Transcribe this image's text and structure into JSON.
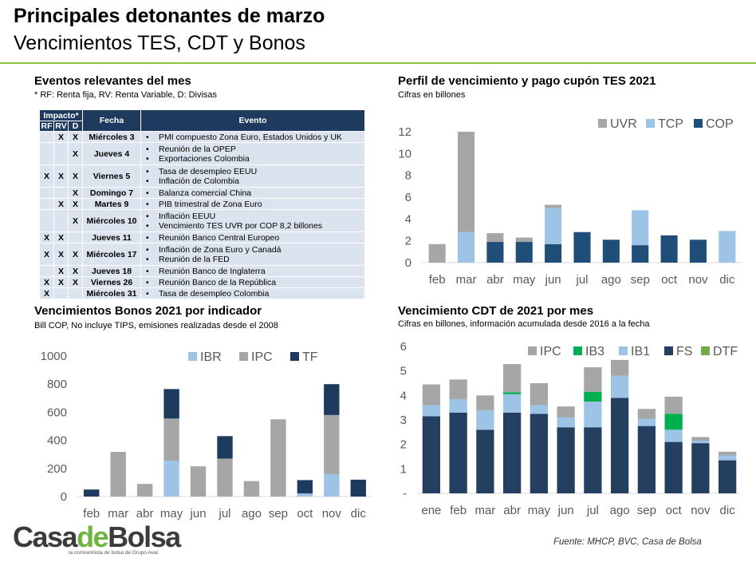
{
  "header": {
    "title": "Principales detonantes de marzo",
    "subtitle": "Vencimientos TES, CDT y Bonos"
  },
  "events": {
    "title": "Eventos relevantes del mes",
    "note": "* RF: Renta fija, RV: Renta Variable, D: Divisas",
    "head": {
      "impacto": "Impacto*",
      "rf": "RF",
      "rv": "RV",
      "d": "D",
      "fecha": "Fecha",
      "evento": "Evento"
    },
    "rows": [
      {
        "rf": "",
        "rv": "X",
        "d": "X",
        "fecha": "Miércoles 3",
        "eventos": [
          "PMI compuesto Zona Euro, Estados Unidos y UK"
        ]
      },
      {
        "rf": "",
        "rv": "",
        "d": "X",
        "fecha": "Jueves 4",
        "eventos": [
          "Reunión de la OPEP",
          "Exportaciones Colombia"
        ]
      },
      {
        "rf": "X",
        "rv": "X",
        "d": "X",
        "fecha": "Viernes 5",
        "eventos": [
          "Tasa de desempleo EEUU",
          "Inflación de Colombia"
        ]
      },
      {
        "rf": "",
        "rv": "",
        "d": "X",
        "fecha": "Domingo 7",
        "eventos": [
          "Balanza comercial China"
        ]
      },
      {
        "rf": "",
        "rv": "X",
        "d": "X",
        "fecha": "Martes 9",
        "eventos": [
          "PIB trimestral de Zona Euro"
        ]
      },
      {
        "rf": "",
        "rv": "",
        "d": "X",
        "fecha": "Miércoles 10",
        "eventos": [
          "Inflación EEUU",
          "Vencimiento TES UVR por COP 8,2 billones"
        ]
      },
      {
        "rf": "X",
        "rv": "X",
        "d": "",
        "fecha": "Jueves 11",
        "eventos": [
          "Reunión Banco Central Europeo"
        ]
      },
      {
        "rf": "X",
        "rv": "X",
        "d": "X",
        "fecha": "Miércoles 17",
        "eventos": [
          "Inflación de Zona Euro y Canadá",
          "Reunión de la FED"
        ]
      },
      {
        "rf": "",
        "rv": "X",
        "d": "X",
        "fecha": "Jueves 18",
        "eventos": [
          "Reunión Banco de Inglaterra"
        ]
      },
      {
        "rf": "X",
        "rv": "X",
        "d": "X",
        "fecha": "Viernes 26",
        "eventos": [
          "Reunión Banco de la República"
        ]
      },
      {
        "rf": "X",
        "rv": "",
        "d": "",
        "fecha": "Miércoles 31",
        "eventos": [
          "Tasa de desempleo Colombia"
        ]
      }
    ]
  },
  "chart_data": [
    {
      "id": "tes",
      "type": "bar",
      "stacked": true,
      "title": "Perfil de vencimiento y pago cupón TES 2021",
      "subtitle": "Cifras en billones",
      "categories": [
        "feb",
        "mar",
        "abr",
        "may",
        "jun",
        "jul",
        "ago",
        "sep",
        "oct",
        "nov",
        "dic"
      ],
      "ylim": [
        0,
        12
      ],
      "yticks": [
        0,
        2,
        4,
        6,
        8,
        10,
        12
      ],
      "ytick_labels": [
        "0",
        "2",
        "4",
        "6",
        "8",
        "10",
        "12"
      ],
      "legend_position": "top-right",
      "series": [
        {
          "name": "COP",
          "color": "#1f4e79",
          "values": [
            0,
            0,
            1.9,
            1.9,
            1.7,
            2.8,
            2.1,
            1.6,
            2.5,
            2.1,
            0
          ]
        },
        {
          "name": "TCP",
          "color": "#9dc3e6",
          "values": [
            0,
            2.8,
            0,
            0,
            3.3,
            0,
            0,
            3.2,
            0,
            0,
            2.9
          ]
        },
        {
          "name": "UVR",
          "color": "#a6a6a6",
          "values": [
            1.7,
            9.2,
            0.8,
            0.4,
            0.3,
            0,
            0,
            0,
            0,
            0,
            0
          ]
        }
      ],
      "legend_order": [
        "UVR",
        "TCP",
        "COP"
      ]
    },
    {
      "id": "bonos",
      "type": "bar",
      "stacked": true,
      "title": "Vencimientos Bonos 2021 por indicador",
      "subtitle": "Bill COP, No incluye TIPS, emisiones realizadas desde el 2008",
      "categories": [
        "feb",
        "mar",
        "abr",
        "may",
        "jun",
        "jul",
        "ago",
        "sep",
        "oct",
        "nov",
        "dic"
      ],
      "ylim": [
        0,
        1000
      ],
      "yticks": [
        0,
        200,
        400,
        600,
        800,
        1000
      ],
      "ytick_labels": [
        "0",
        "200",
        "400",
        "600",
        "800",
        "1000"
      ],
      "legend_position": "top-right",
      "series": [
        {
          "name": "IBR",
          "color": "#9dc3e6",
          "values": [
            0,
            0,
            0,
            255,
            0,
            0,
            0,
            0,
            22,
            160,
            0
          ]
        },
        {
          "name": "IPC",
          "color": "#a6a6a6",
          "values": [
            0,
            318,
            90,
            300,
            215,
            270,
            110,
            550,
            0,
            420,
            0
          ]
        },
        {
          "name": "TF",
          "color": "#1f3a5f",
          "values": [
            50,
            0,
            0,
            210,
            0,
            160,
            0,
            0,
            95,
            220,
            120
          ]
        }
      ],
      "legend_order": [
        "IBR",
        "IPC",
        "TF"
      ]
    },
    {
      "id": "cdt",
      "type": "bar",
      "stacked": true,
      "title": "Vencimiento CDT de 2021 por mes",
      "subtitle": "Cifras en billones, información acumulada desde 2016 a la fecha",
      "categories": [
        "ene",
        "feb",
        "mar",
        "abr",
        "may",
        "jun",
        "jul",
        "ago",
        "sep",
        "oct",
        "nov",
        "dic"
      ],
      "ylim": [
        0,
        6
      ],
      "yticks": [
        0,
        1,
        2,
        3,
        4,
        5,
        6
      ],
      "ytick_labels": [
        "-",
        "1",
        "2",
        "3",
        "4",
        "5",
        "6"
      ],
      "legend_position": "top",
      "series": [
        {
          "name": "FS",
          "color": "#243f60",
          "values": [
            3.15,
            3.3,
            2.6,
            3.3,
            3.25,
            2.7,
            2.7,
            3.9,
            2.75,
            2.1,
            2.05,
            1.35
          ]
        },
        {
          "name": "IB1",
          "color": "#9dc3e6",
          "values": [
            0.45,
            0.55,
            0.8,
            0.75,
            0.35,
            0.4,
            1.05,
            0.9,
            0.3,
            0.5,
            0.1,
            0.2
          ]
        },
        {
          "name": "IB3",
          "color": "#00b050",
          "values": [
            0,
            0,
            0,
            0.08,
            0,
            0,
            0.4,
            0,
            0,
            0.65,
            0,
            0
          ]
        },
        {
          "name": "IPC",
          "color": "#a6a6a6",
          "values": [
            0.85,
            0.8,
            0.6,
            1.15,
            0.9,
            0.45,
            1.0,
            0.65,
            0.4,
            0.7,
            0.15,
            0.15
          ]
        },
        {
          "name": "DTF",
          "color": "#70ad47",
          "values": [
            0,
            0,
            0,
            0,
            0,
            0,
            0,
            0,
            0,
            0,
            0,
            0
          ]
        }
      ],
      "legend_order": [
        "IPC",
        "IB3",
        "IB1",
        "FS",
        "DTF"
      ]
    }
  ],
  "footer": {
    "source": "Fuente: MHCP, BVC, Casa de Bolsa",
    "logo_part1": "Casa",
    "logo_part2": "de",
    "logo_part3": "Bolsa",
    "logo_tagline": "la comisionista de bolsa de Grupo Aval"
  }
}
